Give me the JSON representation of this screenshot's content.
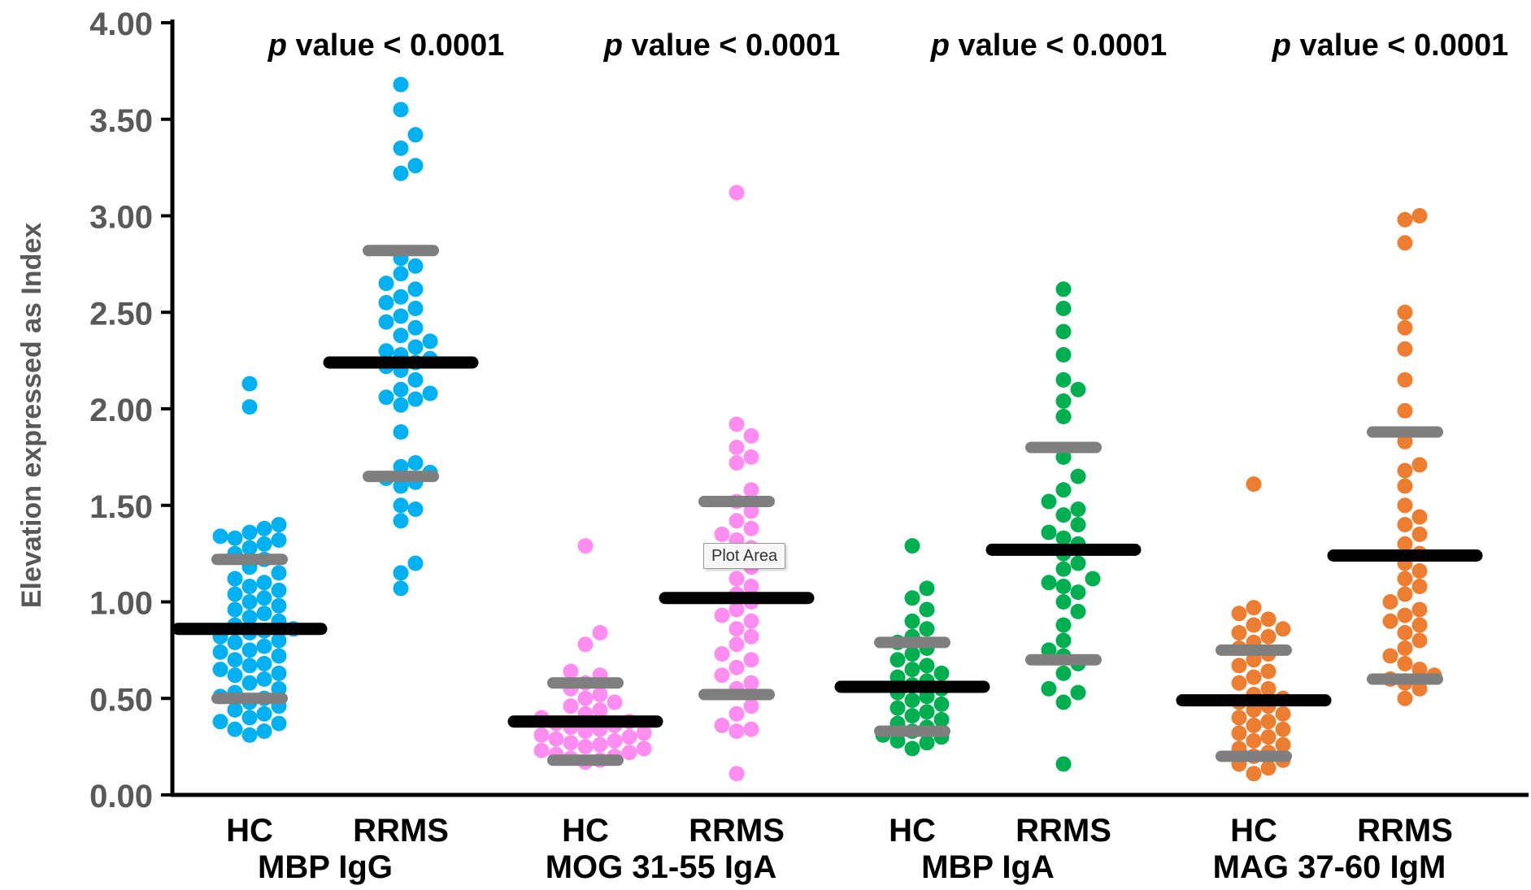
{
  "chart_data": {
    "type": "scatter",
    "title": "",
    "xlabel": "",
    "ylabel": "Elevation expressed as Index",
    "ylim": [
      0,
      4
    ],
    "y_ticks": [
      "0.00",
      "0.50",
      "1.00",
      "1.50",
      "2.00",
      "2.50",
      "3.00",
      "3.50",
      "4.00"
    ],
    "grid": false,
    "legend": "none",
    "group_labels": [
      "HC",
      "RRMS"
    ],
    "colors": {
      "MBP IgG": "#00b0f0",
      "MOG 31-55 IgA": "#ff8cf0",
      "MBP IgA": "#00b050",
      "MAG 37-60 IgM": "#ed7d31",
      "mean_line": "#000000",
      "sd_line": "#7f7f7f",
      "axis": "#000000",
      "tick_label": "#595959"
    },
    "panels": [
      {
        "antibody": "MBP IgG",
        "annotation": "value < 0.0001",
        "annotation_prefix": "p",
        "groups": [
          {
            "label": "HC",
            "mean": 0.86,
            "sd_high": 1.22,
            "sd_low": 0.5,
            "values": [
              0.31,
              0.33,
              0.34,
              0.37,
              0.38,
              0.4,
              0.42,
              0.44,
              0.46,
              0.48,
              0.5,
              0.51,
              0.53,
              0.55,
              0.58,
              0.6,
              0.62,
              0.63,
              0.65,
              0.67,
              0.68,
              0.7,
              0.72,
              0.74,
              0.75,
              0.77,
              0.79,
              0.8,
              0.82,
              0.84,
              0.85,
              0.86,
              0.88,
              0.9,
              0.92,
              0.94,
              0.96,
              0.98,
              1.0,
              1.02,
              1.04,
              1.06,
              1.08,
              1.1,
              1.12,
              1.15,
              1.18,
              1.22,
              1.25,
              1.28,
              1.3,
              1.32,
              1.33,
              1.34,
              1.36,
              1.38,
              1.4,
              2.01,
              2.13
            ]
          },
          {
            "label": "RRMS",
            "mean": 2.24,
            "sd_high": 2.82,
            "sd_low": 1.65,
            "values": [
              1.07,
              1.15,
              1.2,
              1.42,
              1.48,
              1.5,
              1.6,
              1.62,
              1.64,
              1.67,
              1.7,
              1.72,
              1.88,
              2.02,
              2.05,
              2.06,
              2.08,
              2.1,
              2.15,
              2.2,
              2.22,
              2.24,
              2.26,
              2.28,
              2.3,
              2.32,
              2.35,
              2.38,
              2.42,
              2.45,
              2.48,
              2.52,
              2.55,
              2.58,
              2.62,
              2.65,
              2.7,
              2.74,
              2.78,
              3.22,
              3.26,
              3.35,
              3.42,
              3.55,
              3.68
            ]
          }
        ]
      },
      {
        "antibody": "MOG 31-55 IgA",
        "annotation": "value < 0.0001",
        "annotation_prefix": "p",
        "groups": [
          {
            "label": "HC",
            "mean": 0.38,
            "sd_high": 0.58,
            "sd_low": 0.18,
            "values": [
              0.17,
              0.18,
              0.19,
              0.2,
              0.21,
              0.22,
              0.23,
              0.24,
              0.25,
              0.26,
              0.27,
              0.28,
              0.29,
              0.3,
              0.31,
              0.32,
              0.33,
              0.34,
              0.35,
              0.36,
              0.37,
              0.38,
              0.4,
              0.42,
              0.44,
              0.46,
              0.48,
              0.5,
              0.52,
              0.55,
              0.58,
              0.62,
              0.64,
              0.78,
              0.84,
              1.29
            ]
          },
          {
            "label": "RRMS",
            "mean": 1.02,
            "sd_high": 1.52,
            "sd_low": 0.52,
            "values": [
              0.11,
              0.33,
              0.34,
              0.36,
              0.42,
              0.46,
              0.55,
              0.58,
              0.62,
              0.66,
              0.7,
              0.73,
              0.78,
              0.82,
              0.86,
              0.9,
              0.93,
              0.96,
              1.0,
              1.04,
              1.08,
              1.12,
              1.18,
              1.22,
              1.28,
              1.32,
              1.35,
              1.38,
              1.42,
              1.47,
              1.52,
              1.58,
              1.72,
              1.75,
              1.8,
              1.86,
              1.92,
              3.12
            ]
          }
        ]
      },
      {
        "antibody": "MBP IgA",
        "annotation": "value < 0.0001",
        "annotation_prefix": "p",
        "groups": [
          {
            "label": "HC",
            "mean": 0.56,
            "sd_high": 0.79,
            "sd_low": 0.33,
            "values": [
              0.24,
              0.27,
              0.28,
              0.3,
              0.31,
              0.33,
              0.35,
              0.37,
              0.39,
              0.41,
              0.43,
              0.45,
              0.47,
              0.49,
              0.51,
              0.53,
              0.55,
              0.57,
              0.59,
              0.61,
              0.63,
              0.65,
              0.67,
              0.7,
              0.73,
              0.76,
              0.79,
              0.82,
              0.86,
              0.9,
              0.96,
              1.02,
              1.07,
              1.29
            ]
          },
          {
            "label": "RRMS",
            "mean": 1.27,
            "sd_high": 1.8,
            "sd_low": 0.7,
            "values": [
              0.16,
              0.48,
              0.53,
              0.55,
              0.63,
              0.68,
              0.72,
              0.75,
              0.8,
              0.88,
              0.95,
              1.0,
              1.05,
              1.08,
              1.1,
              1.12,
              1.17,
              1.2,
              1.25,
              1.3,
              1.33,
              1.36,
              1.4,
              1.45,
              1.48,
              1.52,
              1.58,
              1.65,
              1.75,
              1.96,
              2.04,
              2.1,
              2.15,
              2.28,
              2.4,
              2.52,
              2.62
            ]
          }
        ]
      },
      {
        "antibody": "MAG 37-60 IgM",
        "annotation": "value < 0.0001",
        "annotation_prefix": "p",
        "groups": [
          {
            "label": "HC",
            "mean": 0.49,
            "sd_high": 0.75,
            "sd_low": 0.2,
            "values": [
              0.11,
              0.14,
              0.16,
              0.18,
              0.2,
              0.22,
              0.24,
              0.26,
              0.28,
              0.3,
              0.32,
              0.34,
              0.36,
              0.38,
              0.4,
              0.42,
              0.44,
              0.46,
              0.48,
              0.5,
              0.52,
              0.55,
              0.58,
              0.61,
              0.64,
              0.67,
              0.7,
              0.73,
              0.76,
              0.79,
              0.82,
              0.84,
              0.86,
              0.88,
              0.91,
              0.94,
              0.97,
              1.61
            ]
          },
          {
            "label": "RRMS",
            "mean": 1.24,
            "sd_high": 1.88,
            "sd_low": 0.6,
            "values": [
              0.5,
              0.55,
              0.58,
              0.6,
              0.62,
              0.65,
              0.68,
              0.72,
              0.76,
              0.8,
              0.84,
              0.88,
              0.9,
              0.93,
              0.96,
              1.0,
              1.04,
              1.08,
              1.12,
              1.16,
              1.2,
              1.25,
              1.3,
              1.35,
              1.4,
              1.44,
              1.5,
              1.6,
              1.68,
              1.71,
              1.83,
              1.99,
              2.15,
              2.31,
              2.42,
              2.5,
              2.86,
              2.98,
              3.0
            ]
          }
        ]
      }
    ]
  },
  "tooltip": {
    "text": "Plot Area"
  }
}
